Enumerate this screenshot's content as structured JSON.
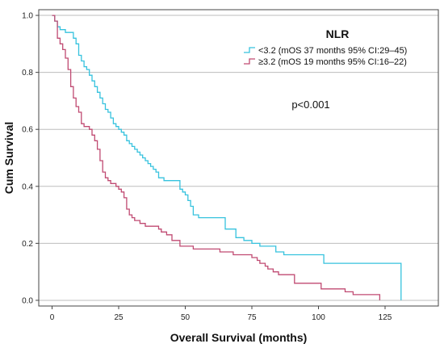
{
  "chart_data": {
    "type": "line",
    "xlabel": "Overall Survival (months)",
    "ylabel": "Cum Survival",
    "xlim": [
      -5,
      145
    ],
    "ylim": [
      -0.02,
      1.02
    ],
    "x_ticks": [
      "0",
      "25",
      "50",
      "75",
      "100",
      "125"
    ],
    "y_ticks": [
      "0.0",
      "0.2",
      "0.4",
      "0.6",
      "0.8",
      "1.0"
    ],
    "grid": "horizontal",
    "legend": {
      "title": "NLR",
      "placement": "top-right"
    },
    "annotation": "p<0.001",
    "series": [
      {
        "name": "<3.2 (mOS 37 months 95% CI:29–45)",
        "color": "#36c2de",
        "step": true,
        "x": [
          0,
          1,
          2,
          3,
          4,
          5,
          6,
          8,
          9,
          10,
          11,
          12,
          13,
          14,
          15,
          16,
          17,
          18,
          19,
          20,
          21,
          22,
          23,
          24,
          25,
          26,
          27,
          28,
          29,
          30,
          31,
          32,
          33,
          34,
          35,
          36,
          37,
          38,
          39,
          40,
          41,
          42,
          43,
          44,
          48,
          49,
          50,
          51,
          52,
          53,
          54,
          55,
          57,
          58,
          62,
          65,
          66,
          69,
          70,
          72,
          75,
          78,
          80,
          84,
          87,
          102,
          131
        ],
        "y": [
          1.0,
          0.98,
          0.96,
          0.95,
          0.95,
          0.94,
          0.94,
          0.92,
          0.9,
          0.86,
          0.84,
          0.82,
          0.81,
          0.79,
          0.77,
          0.75,
          0.73,
          0.71,
          0.69,
          0.67,
          0.66,
          0.64,
          0.62,
          0.61,
          0.6,
          0.59,
          0.58,
          0.56,
          0.55,
          0.54,
          0.53,
          0.52,
          0.51,
          0.5,
          0.49,
          0.48,
          0.47,
          0.46,
          0.45,
          0.43,
          0.43,
          0.42,
          0.42,
          0.42,
          0.39,
          0.38,
          0.37,
          0.35,
          0.33,
          0.3,
          0.3,
          0.29,
          0.29,
          0.29,
          0.29,
          0.25,
          0.25,
          0.22,
          0.22,
          0.21,
          0.2,
          0.19,
          0.19,
          0.17,
          0.16,
          0.13,
          0.0
        ]
      },
      {
        "name": "≥3.2 (mOS 19 months 95% CI:16–22)",
        "color": "#c04a72",
        "step": true,
        "x": [
          0,
          1,
          2,
          3,
          4,
          5,
          6,
          7,
          8,
          9,
          10,
          11,
          12,
          13,
          14,
          15,
          16,
          17,
          18,
          19,
          20,
          21,
          22,
          23,
          24,
          25,
          26,
          27,
          28,
          29,
          30,
          31,
          32,
          33,
          34,
          35,
          40,
          41,
          43,
          45,
          48,
          53,
          58,
          63,
          68,
          72,
          75,
          77,
          78,
          80,
          81,
          83,
          85,
          87,
          91,
          101,
          110,
          113,
          123
        ],
        "y": [
          1.0,
          0.98,
          0.92,
          0.9,
          0.88,
          0.85,
          0.81,
          0.75,
          0.71,
          0.68,
          0.66,
          0.62,
          0.61,
          0.61,
          0.6,
          0.58,
          0.56,
          0.53,
          0.49,
          0.45,
          0.43,
          0.42,
          0.41,
          0.41,
          0.4,
          0.39,
          0.38,
          0.36,
          0.32,
          0.3,
          0.29,
          0.28,
          0.28,
          0.27,
          0.27,
          0.26,
          0.25,
          0.24,
          0.23,
          0.21,
          0.19,
          0.18,
          0.18,
          0.17,
          0.16,
          0.16,
          0.15,
          0.14,
          0.13,
          0.12,
          0.11,
          0.1,
          0.09,
          0.09,
          0.06,
          0.04,
          0.03,
          0.02,
          0.0
        ]
      }
    ]
  }
}
